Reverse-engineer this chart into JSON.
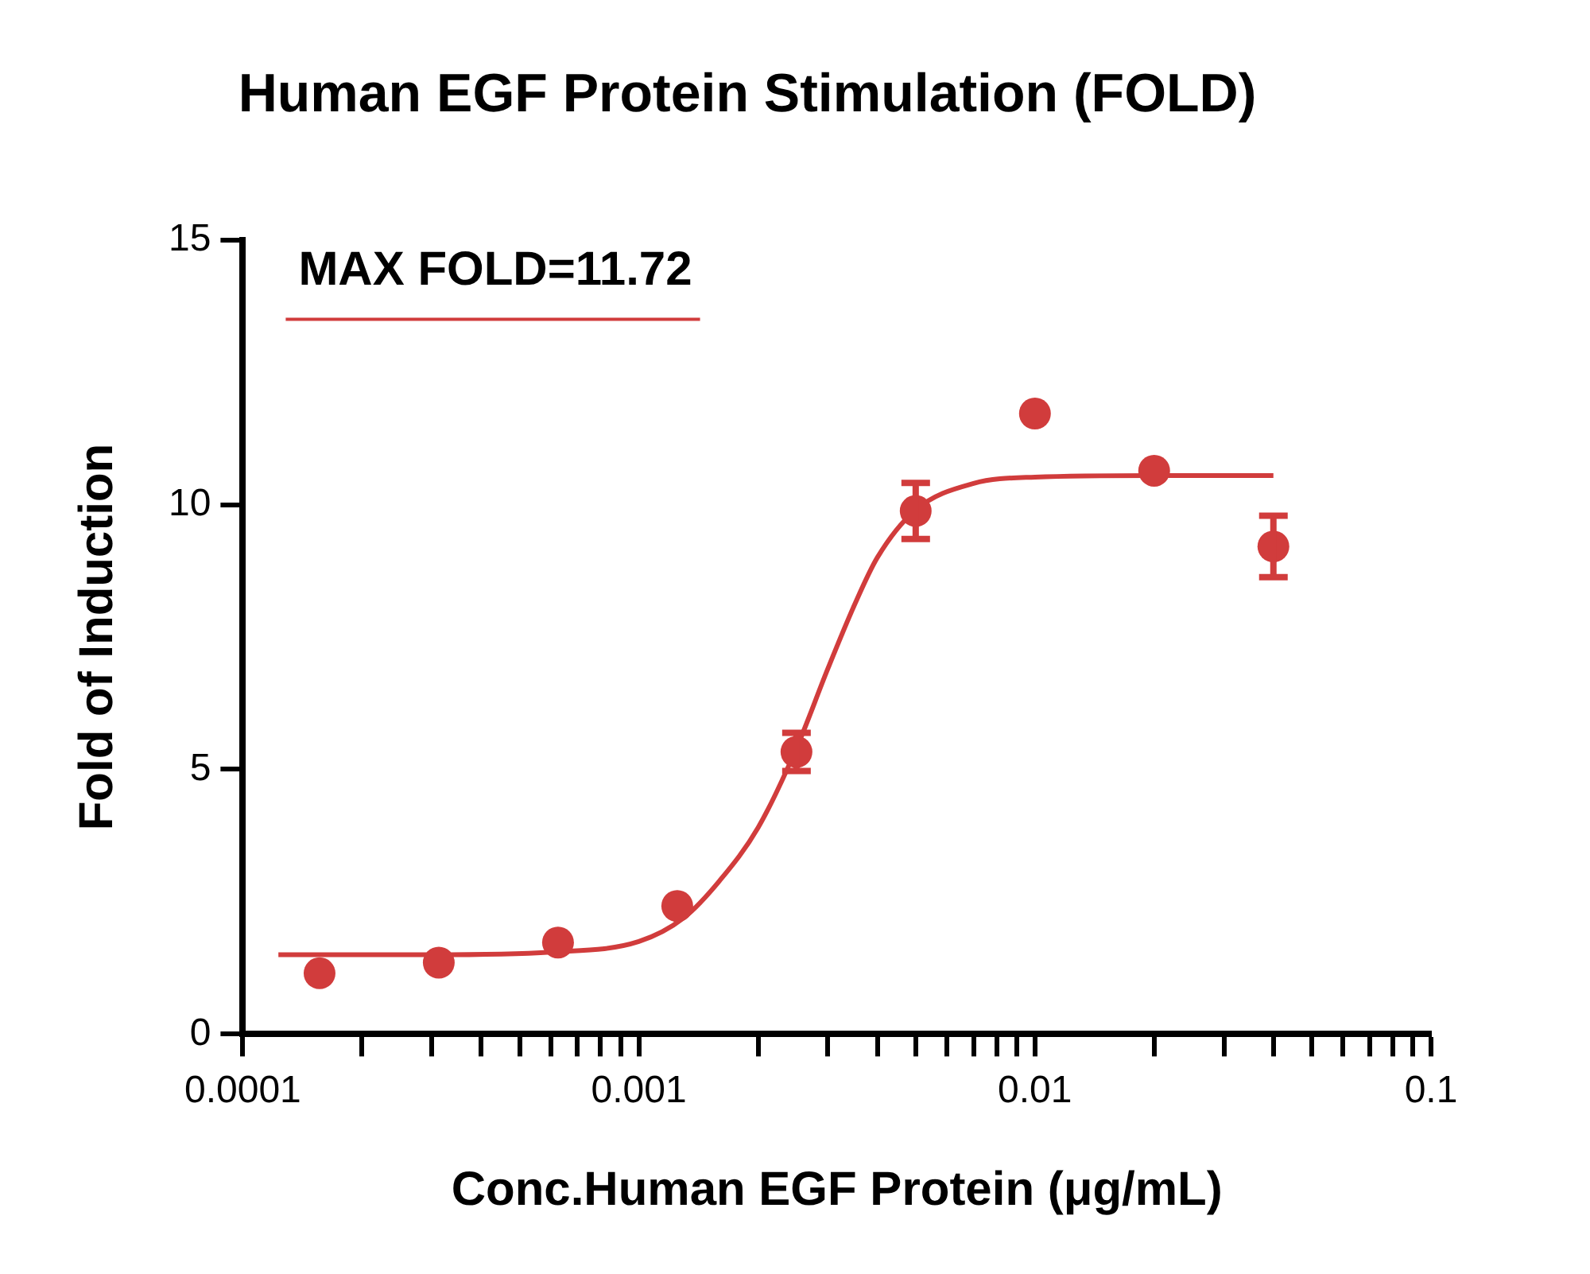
{
  "chart_data": {
    "type": "scatter",
    "title": "Human EGF Protein Stimulation (FOLD)",
    "xlabel": "Conc.Human EGF Protein (μg/mL)",
    "ylabel": "Fold of Induction",
    "annotations": [
      "MAX FOLD=11.72"
    ],
    "log": "x",
    "grid": false,
    "legend": false,
    "marker": "circle",
    "xlim": [
      0.0001,
      0.1
    ],
    "ylim": [
      0,
      15
    ],
    "yticks": [
      0,
      5,
      10,
      15
    ],
    "xticks": [
      {
        "value": 0.0001,
        "label": "0.0001"
      },
      {
        "value": 0.0002,
        "label": null
      },
      {
        "value": 0.0003,
        "label": null
      },
      {
        "value": 0.0004,
        "label": null
      },
      {
        "value": 0.0005,
        "label": null
      },
      {
        "value": 0.0006,
        "label": null
      },
      {
        "value": 0.0007,
        "label": null
      },
      {
        "value": 0.0008,
        "label": null
      },
      {
        "value": 0.0009,
        "label": null
      },
      {
        "value": 0.001,
        "label": "0.001"
      },
      {
        "value": 0.002,
        "label": null
      },
      {
        "value": 0.003,
        "label": null
      },
      {
        "value": 0.004,
        "label": null
      },
      {
        "value": 0.005,
        "label": null
      },
      {
        "value": 0.006,
        "label": null
      },
      {
        "value": 0.007,
        "label": null
      },
      {
        "value": 0.008,
        "label": null
      },
      {
        "value": 0.009,
        "label": null
      },
      {
        "value": 0.01,
        "label": "0.01"
      },
      {
        "value": 0.02,
        "label": null
      },
      {
        "value": 0.03,
        "label": null
      },
      {
        "value": 0.04,
        "label": null
      },
      {
        "value": 0.05,
        "label": null
      },
      {
        "value": 0.06,
        "label": null
      },
      {
        "value": 0.07,
        "label": null
      },
      {
        "value": 0.08,
        "label": null
      },
      {
        "value": 0.09,
        "label": null
      },
      {
        "value": 0.1,
        "label": "0.1"
      }
    ],
    "series": [
      {
        "type": "scatter",
        "color": "#d13c3c",
        "x": [
          0.00015625,
          0.0003125,
          0.000625,
          0.00125,
          0.0025,
          0.005,
          0.01,
          0.02,
          0.04
        ],
        "values": [
          1.15,
          1.35,
          1.73,
          2.42,
          5.33,
          9.88,
          11.72,
          10.64,
          9.21
        ],
        "errors": [
          null,
          null,
          null,
          null,
          0.36,
          0.53,
          null,
          null,
          0.58
        ]
      },
      {
        "type": "line",
        "color": "#d13c3c",
        "marker": "none",
        "x": [
          0.000123,
          0.0003,
          0.0006,
          0.001,
          0.0013,
          0.0016,
          0.002,
          0.0025,
          0.003,
          0.0035,
          0.004,
          0.005,
          0.007,
          0.01,
          0.02,
          0.04
        ],
        "values": [
          1.5,
          1.5,
          1.55,
          1.75,
          2.2,
          2.9,
          3.9,
          5.4,
          6.9,
          8.1,
          9.0,
          9.9,
          10.4,
          10.52,
          10.55,
          10.55
        ]
      }
    ]
  }
}
